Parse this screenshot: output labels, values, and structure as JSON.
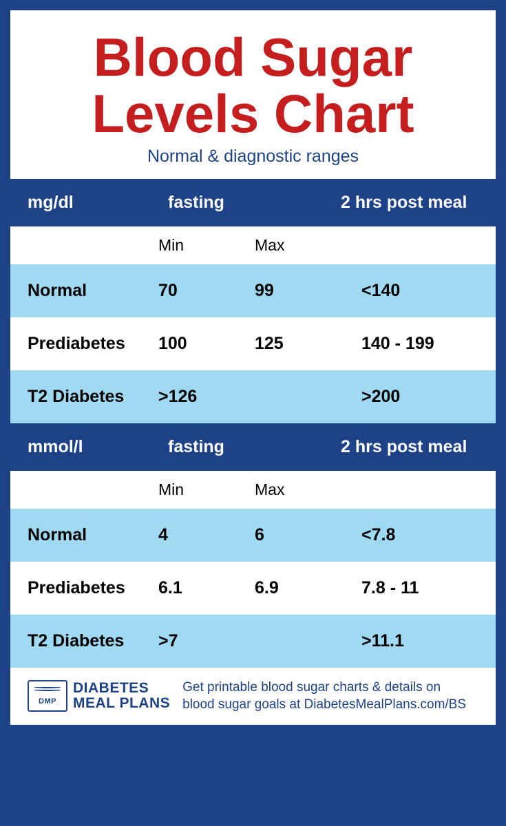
{
  "colors": {
    "frame": "#1d4287",
    "title_red": "#c41e1e",
    "white": "#ffffff",
    "row_light_blue": "#a0daf2",
    "text_black": "#000000"
  },
  "header": {
    "title_line1": "Blood Sugar",
    "title_line2": "Levels Chart",
    "subtitle": "Normal & diagnostic ranges"
  },
  "sections": [
    {
      "unit_label": "mg/dl",
      "fasting_label": "fasting",
      "post_meal_label": "2 hrs post meal",
      "min_label": "Min",
      "max_label": "Max",
      "rows": [
        {
          "label": "Normal",
          "min": "70",
          "max": "99",
          "post": "<140",
          "bg": "blue"
        },
        {
          "label": "Prediabetes",
          "min": "100",
          "max": "125",
          "post": "140 - 199",
          "bg": "white"
        },
        {
          "label": "T2 Diabetes",
          "min": ">126",
          "max": "",
          "post": ">200",
          "bg": "blue"
        }
      ]
    },
    {
      "unit_label": "mmol/l",
      "fasting_label": "fasting",
      "post_meal_label": "2 hrs post meal",
      "min_label": "Min",
      "max_label": "Max",
      "rows": [
        {
          "label": "Normal",
          "min": "4",
          "max": "6",
          "post": "<7.8",
          "bg": "blue"
        },
        {
          "label": "Prediabetes",
          "min": "6.1",
          "max": "6.9",
          "post": "7.8 - 11",
          "bg": "white"
        },
        {
          "label": "T2 Diabetes",
          "min": ">7",
          "max": "",
          "post": ">11.1",
          "bg": "blue"
        }
      ]
    }
  ],
  "footer": {
    "logo_abbrev": "DMP",
    "logo_line1": "DIABETES",
    "logo_line2": "MEAL PLANS",
    "text_line1": "Get printable blood sugar charts & details on",
    "text_line2": "blood sugar goals at DiabetesMealPlans.com/BS"
  }
}
